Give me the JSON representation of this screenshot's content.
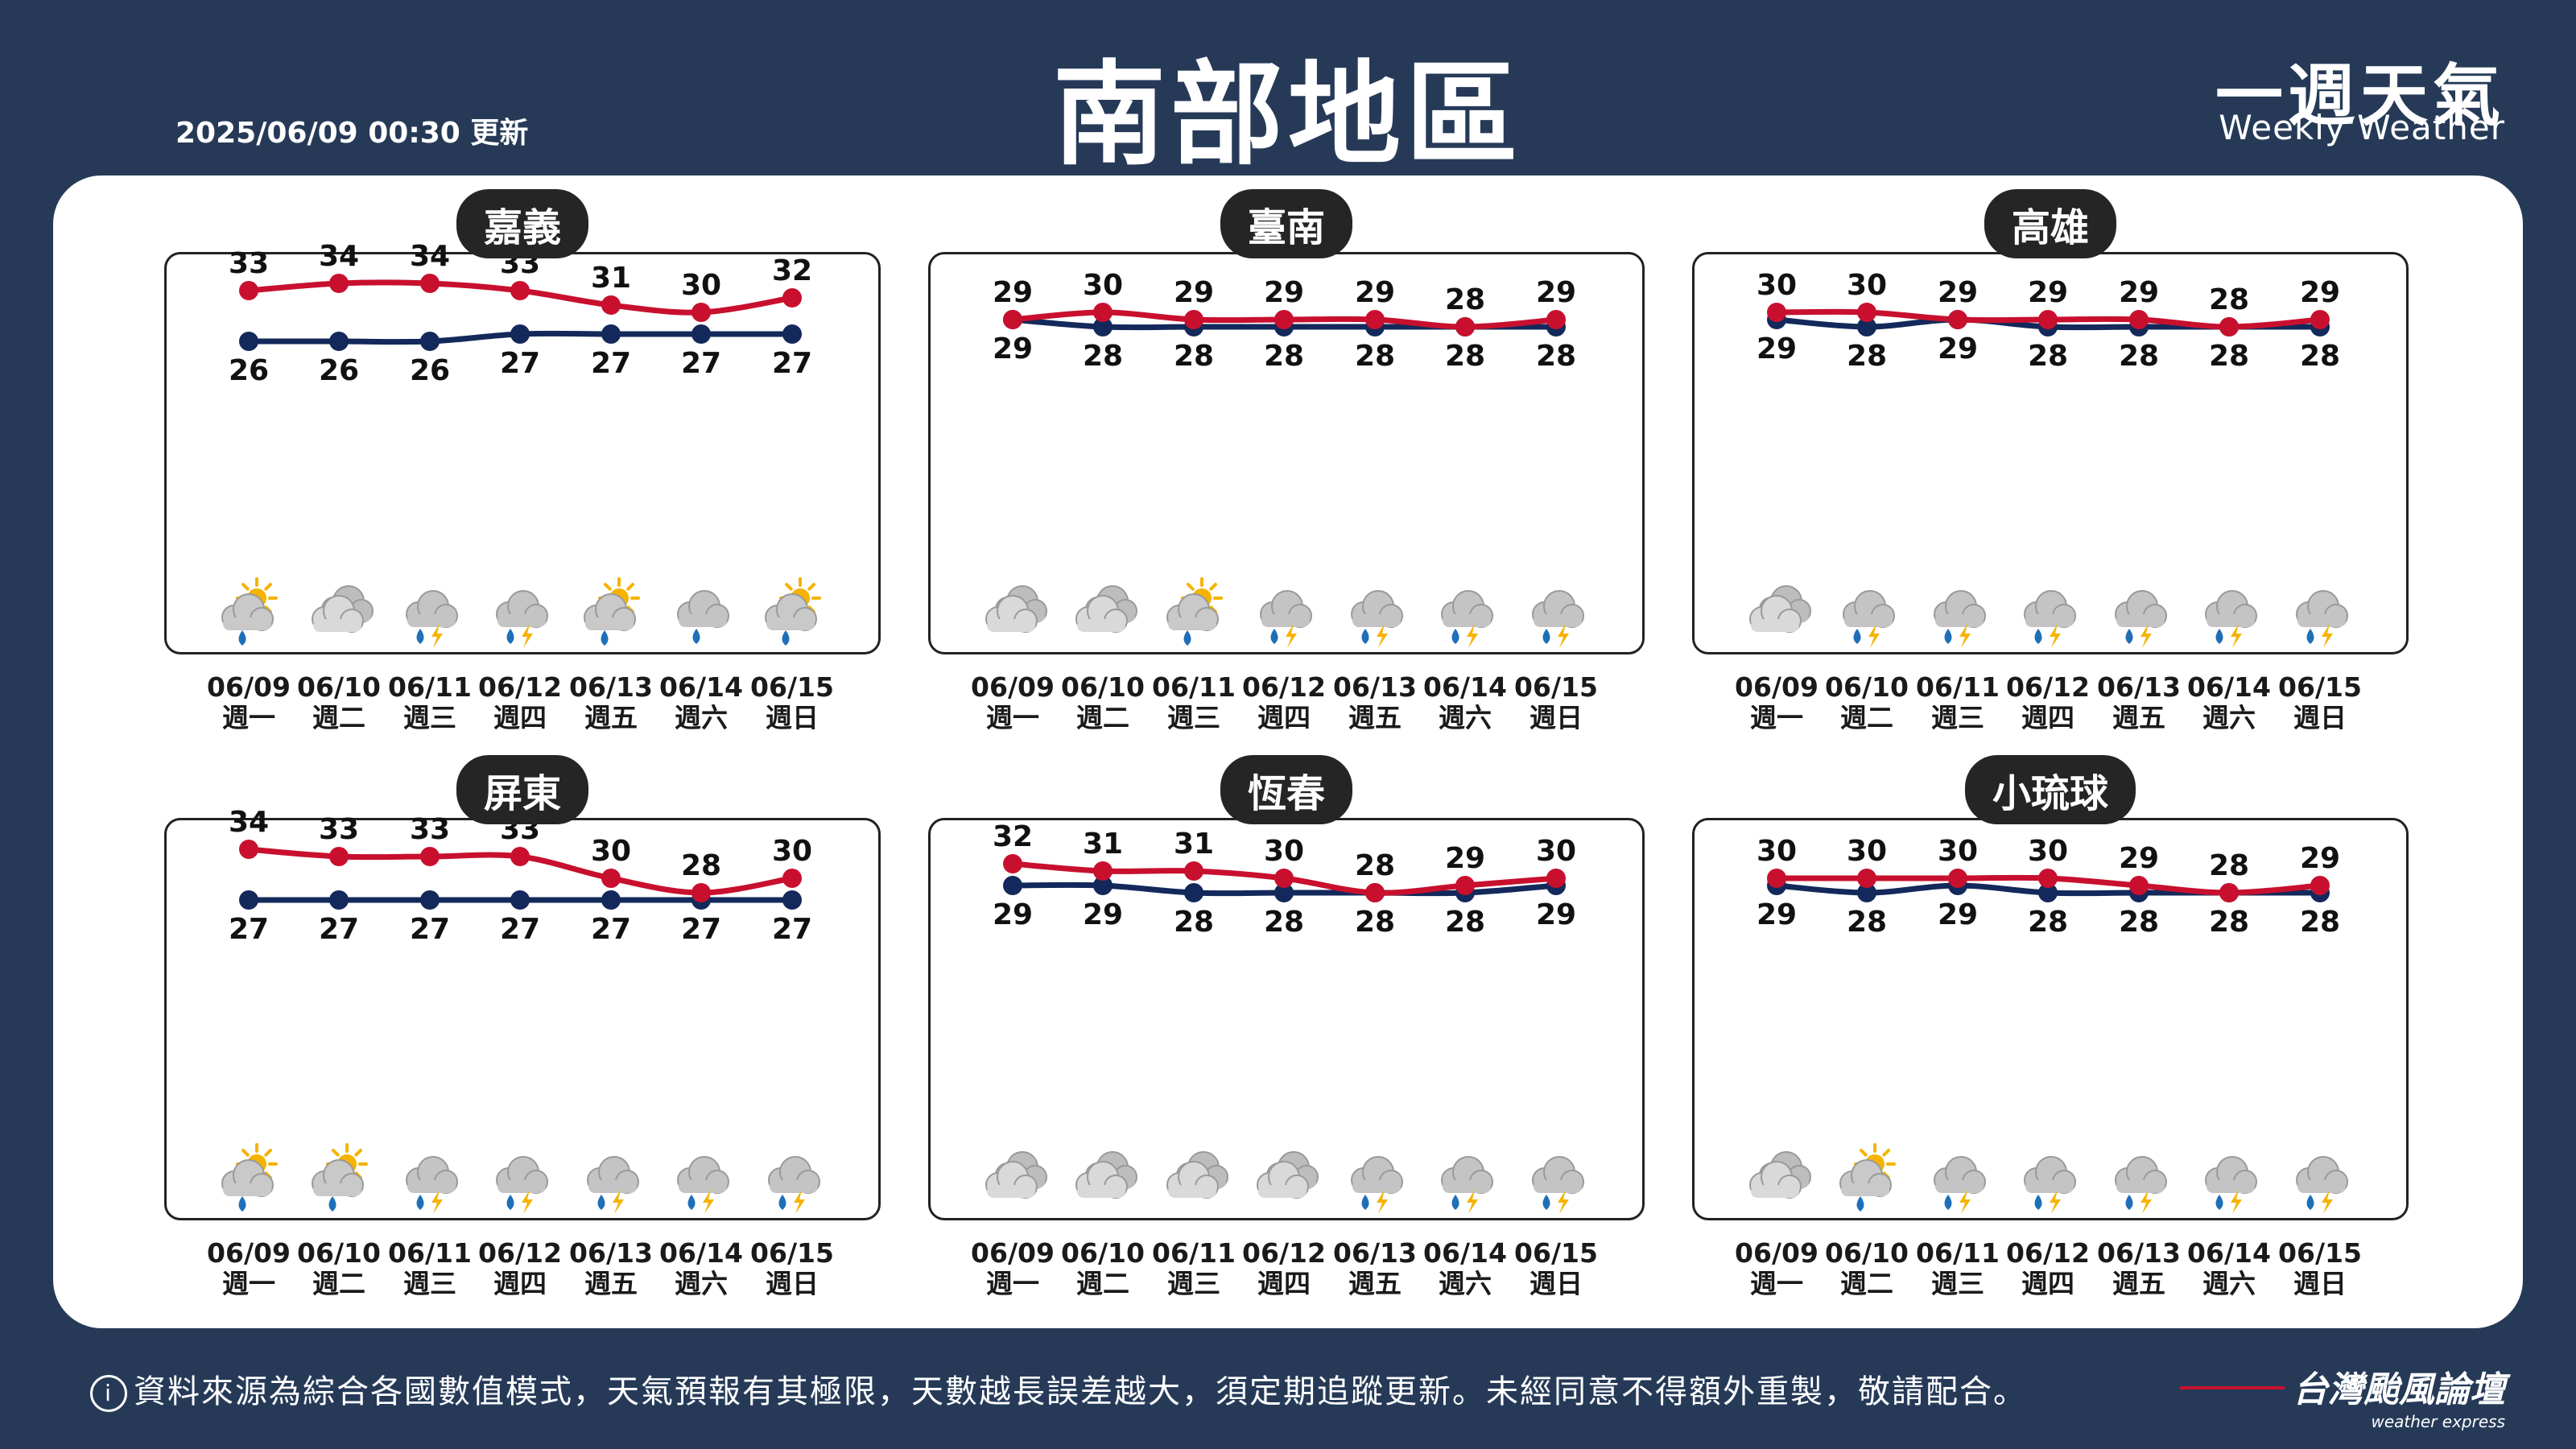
{
  "header": {
    "title": "南部地區",
    "updated": "2025/06/09 00:30 更新",
    "brand_cn": "一週天氣",
    "brand_en": "Weekly Weather"
  },
  "footer": {
    "info_icon": "i",
    "note": "資料來源為綜合各國數值模式，天氣預報有其極限，天數越長誤差越大，須定期追蹤更新。未經同意不得額外重製，敬請配合。",
    "brand_cn": "台灣颱風論壇",
    "brand_en": "weather express"
  },
  "colors": {
    "high": "#c8102e",
    "low": "#13295b"
  },
  "chart_data": [
    {
      "type": "line",
      "title": "嘉義",
      "x": [
        "06/09",
        "06/10",
        "06/11",
        "06/12",
        "06/13",
        "06/14",
        "06/15"
      ],
      "weekdays": [
        "週一",
        "週二",
        "週三",
        "週四",
        "週五",
        "週六",
        "週日"
      ],
      "series": [
        {
          "values": [
            33,
            34,
            34,
            33,
            31,
            30,
            32
          ]
        },
        {
          "values": [
            26,
            26,
            26,
            27,
            27,
            27,
            27
          ]
        }
      ],
      "icons": [
        "partly-sunny-rain",
        "cloudy",
        "thunder-rain",
        "thunder-rain",
        "partly-sunny-rain",
        "cloudy-rain",
        "partly-sunny-rain"
      ]
    },
    {
      "type": "line",
      "title": "臺南",
      "x": [
        "06/09",
        "06/10",
        "06/11",
        "06/12",
        "06/13",
        "06/14",
        "06/15"
      ],
      "weekdays": [
        "週一",
        "週二",
        "週三",
        "週四",
        "週五",
        "週六",
        "週日"
      ],
      "series": [
        {
          "values": [
            29,
            30,
            29,
            29,
            29,
            28,
            29
          ]
        },
        {
          "values": [
            29,
            28,
            28,
            28,
            28,
            28,
            28
          ]
        }
      ],
      "icons": [
        "cloudy",
        "cloudy",
        "partly-sunny-rain",
        "thunder-rain",
        "thunder-rain",
        "thunder-rain",
        "thunder-rain"
      ]
    },
    {
      "type": "line",
      "title": "高雄",
      "x": [
        "06/09",
        "06/10",
        "06/11",
        "06/12",
        "06/13",
        "06/14",
        "06/15"
      ],
      "weekdays": [
        "週一",
        "週二",
        "週三",
        "週四",
        "週五",
        "週六",
        "週日"
      ],
      "series": [
        {
          "values": [
            30,
            30,
            29,
            29,
            29,
            28,
            29
          ]
        },
        {
          "values": [
            29,
            28,
            29,
            28,
            28,
            28,
            28
          ]
        }
      ],
      "icons": [
        "cloudy",
        "thunder-rain",
        "thunder-rain",
        "thunder-rain",
        "thunder-rain",
        "thunder-rain",
        "thunder-rain"
      ]
    },
    {
      "type": "line",
      "title": "屏東",
      "x": [
        "06/09",
        "06/10",
        "06/11",
        "06/12",
        "06/13",
        "06/14",
        "06/15"
      ],
      "weekdays": [
        "週一",
        "週二",
        "週三",
        "週四",
        "週五",
        "週六",
        "週日"
      ],
      "series": [
        {
          "values": [
            34,
            33,
            33,
            33,
            30,
            28,
            30
          ]
        },
        {
          "values": [
            27,
            27,
            27,
            27,
            27,
            27,
            27
          ]
        }
      ],
      "icons": [
        "partly-sunny-rain",
        "partly-sunny-rain",
        "thunder-rain",
        "thunder-rain",
        "thunder-rain",
        "thunder-rain",
        "thunder-rain"
      ]
    },
    {
      "type": "line",
      "title": "恆春",
      "x": [
        "06/09",
        "06/10",
        "06/11",
        "06/12",
        "06/13",
        "06/14",
        "06/15"
      ],
      "weekdays": [
        "週一",
        "週二",
        "週三",
        "週四",
        "週五",
        "週六",
        "週日"
      ],
      "series": [
        {
          "values": [
            32,
            31,
            31,
            30,
            28,
            29,
            30
          ]
        },
        {
          "values": [
            29,
            29,
            28,
            28,
            28,
            28,
            29
          ]
        }
      ],
      "icons": [
        "cloudy",
        "cloudy",
        "cloudy",
        "cloudy",
        "thunder-rain",
        "thunder-rain",
        "thunder-rain"
      ]
    },
    {
      "type": "line",
      "title": "小琉球",
      "x": [
        "06/09",
        "06/10",
        "06/11",
        "06/12",
        "06/13",
        "06/14",
        "06/15"
      ],
      "weekdays": [
        "週一",
        "週二",
        "週三",
        "週四",
        "週五",
        "週六",
        "週日"
      ],
      "series": [
        {
          "values": [
            30,
            30,
            30,
            30,
            29,
            28,
            29
          ]
        },
        {
          "values": [
            29,
            28,
            29,
            28,
            28,
            28,
            28
          ]
        }
      ],
      "icons": [
        "cloudy",
        "partly-sunny-rain",
        "thunder-rain",
        "thunder-rain",
        "thunder-rain",
        "thunder-rain",
        "thunder-rain"
      ]
    }
  ]
}
